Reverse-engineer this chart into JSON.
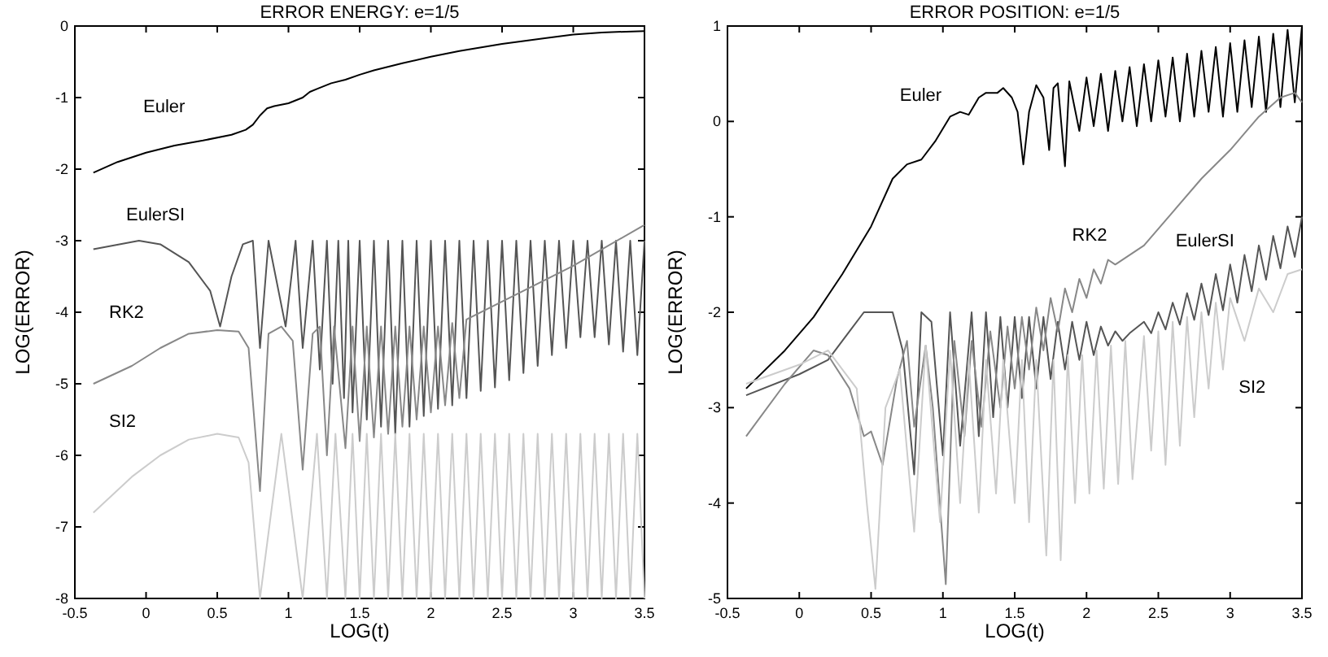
{
  "chart_data": [
    {
      "type": "line",
      "title": "ERROR ENERGY: e=1/5",
      "xlabel": "LOG(t)",
      "ylabel": "LOG(ERROR)",
      "xlim": [
        -0.5,
        3.5
      ],
      "ylim": [
        -8,
        0
      ],
      "xticks": [
        -0.5,
        0,
        0.5,
        1,
        1.5,
        2,
        2.5,
        3,
        3.5
      ],
      "yticks": [
        -8,
        -7,
        -6,
        -5,
        -4,
        -3,
        -2,
        -1,
        0
      ],
      "grid": false,
      "legend": false,
      "marker": "none",
      "line_style": "solid",
      "series": [
        {
          "name": "Euler",
          "color": "#000000",
          "x": [
            -0.37,
            -0.2,
            0,
            0.2,
            0.4,
            0.6,
            0.7,
            0.75,
            0.8,
            0.85,
            0.9,
            1.0,
            1.1,
            1.15,
            1.2,
            1.3,
            1.4,
            1.5,
            1.6,
            1.8,
            2.0,
            2.2,
            2.5,
            2.8,
            3.0,
            3.2,
            3.5
          ],
          "values": [
            -2.05,
            -1.9,
            -1.77,
            -1.67,
            -1.6,
            -1.52,
            -1.45,
            -1.38,
            -1.25,
            -1.15,
            -1.12,
            -1.08,
            -1.0,
            -0.92,
            -0.88,
            -0.8,
            -0.75,
            -0.68,
            -0.62,
            -0.52,
            -0.43,
            -0.35,
            -0.25,
            -0.17,
            -0.12,
            -0.09,
            -0.07
          ]
        },
        {
          "name": "EulerSI",
          "color": "#555555",
          "x": [
            -0.37,
            -0.05,
            0.1,
            0.3,
            0.45,
            0.52,
            0.6,
            0.68,
            0.75,
            0.8,
            0.86,
            0.98,
            1.05,
            1.1,
            1.17,
            1.22,
            1.27,
            1.31,
            1.35,
            1.39,
            1.42,
            1.45,
            1.5,
            1.55,
            1.6,
            1.65,
            1.7,
            1.75,
            1.8,
            1.85,
            1.9,
            1.95,
            2.0,
            2.05,
            2.1,
            2.15,
            2.2,
            2.25,
            2.3,
            2.35,
            2.4,
            2.45,
            2.5,
            2.55,
            2.6,
            2.65,
            2.7,
            2.75,
            2.8,
            2.85,
            2.9,
            2.95,
            3.0,
            3.05,
            3.1,
            3.15,
            3.2,
            3.25,
            3.3,
            3.35,
            3.4,
            3.45,
            3.5
          ],
          "values": [
            -3.12,
            -3.0,
            -3.05,
            -3.3,
            -3.7,
            -4.2,
            -3.5,
            -3.05,
            -3.0,
            -4.5,
            -3.0,
            -4.2,
            -3.0,
            -4.5,
            -3.0,
            -4.8,
            -3.0,
            -5.0,
            -3.0,
            -5.2,
            -3.0,
            -5.4,
            -3.0,
            -5.5,
            -3.0,
            -5.6,
            -3.0,
            -5.7,
            -3.0,
            -5.6,
            -3.0,
            -5.45,
            -3.0,
            -5.35,
            -3.0,
            -5.3,
            -3.0,
            -5.2,
            -3.0,
            -5.1,
            -3.0,
            -5.05,
            -3.0,
            -4.95,
            -3.0,
            -4.85,
            -3.0,
            -4.75,
            -3.0,
            -4.6,
            -3.0,
            -4.5,
            -3.0,
            -4.35,
            -3.0,
            -4.35,
            -3.0,
            -4.45,
            -3.0,
            -4.55,
            -3.0,
            -4.6,
            -3.0
          ]
        },
        {
          "name": "RK2",
          "color": "#888888",
          "x": [
            -0.37,
            -0.1,
            0.1,
            0.3,
            0.5,
            0.65,
            0.72,
            0.8,
            0.86,
            0.95,
            1.03,
            1.1,
            1.17,
            1.22,
            1.27,
            1.32,
            1.4,
            1.45,
            1.5,
            1.55,
            1.6,
            1.65,
            1.7,
            1.75,
            1.8,
            1.85,
            1.9,
            1.95,
            2.0,
            2.05,
            2.1,
            2.15,
            2.2,
            2.25,
            2.5,
            3.0,
            3.5
          ],
          "values": [
            -5.0,
            -4.75,
            -4.5,
            -4.3,
            -4.25,
            -4.27,
            -4.5,
            -6.5,
            -4.3,
            -4.2,
            -4.4,
            -6.2,
            -4.3,
            -4.2,
            -6.0,
            -4.2,
            -5.9,
            -4.2,
            -5.8,
            -4.2,
            -5.75,
            -4.2,
            -5.7,
            -4.2,
            -5.6,
            -4.2,
            -5.5,
            -4.2,
            -5.4,
            -4.2,
            -5.3,
            -4.15,
            -5.2,
            -4.1,
            -3.85,
            -3.35,
            -2.78
          ]
        },
        {
          "name": "SI2",
          "color": "#cccccc",
          "x": [
            -0.37,
            -0.1,
            0.1,
            0.3,
            0.5,
            0.65,
            0.72,
            0.8,
            0.95,
            1.1,
            1.2,
            1.27,
            1.33,
            1.4,
            1.45,
            1.5,
            1.55,
            1.6,
            1.65,
            1.7,
            1.75,
            1.8,
            1.85,
            1.9,
            1.95,
            2.0,
            2.05,
            2.1,
            2.15,
            2.2,
            2.25,
            2.3,
            2.35,
            2.4,
            2.45,
            2.5,
            2.55,
            2.6,
            2.65,
            2.7,
            2.75,
            2.8,
            2.85,
            2.9,
            2.95,
            3.0,
            3.05,
            3.1,
            3.15,
            3.2,
            3.25,
            3.3,
            3.35,
            3.4,
            3.45,
            3.5
          ],
          "values": [
            -6.8,
            -6.3,
            -6.0,
            -5.78,
            -5.7,
            -5.75,
            -6.1,
            -8,
            -5.7,
            -8,
            -5.7,
            -8,
            -5.7,
            -8,
            -5.7,
            -8,
            -5.7,
            -8,
            -5.7,
            -8,
            -5.7,
            -8,
            -5.7,
            -8,
            -5.7,
            -8,
            -5.7,
            -8,
            -5.7,
            -8,
            -5.7,
            -8,
            -5.7,
            -8,
            -5.7,
            -8,
            -5.7,
            -8,
            -5.7,
            -8,
            -5.7,
            -8,
            -5.7,
            -8,
            -5.7,
            -8,
            -5.7,
            -8,
            -5.7,
            -8,
            -5.7,
            -8,
            -5.7,
            -8,
            -5.7,
            -8
          ]
        }
      ]
    },
    {
      "type": "line",
      "title": "ERROR POSITION: e=1/5",
      "xlabel": "LOG(t)",
      "ylabel": "LOG(ERROR)",
      "xlim": [
        -0.5,
        3.5
      ],
      "ylim": [
        -5,
        1
      ],
      "xticks": [
        -0.5,
        0,
        0.5,
        1,
        1.5,
        2,
        2.5,
        3,
        3.5
      ],
      "yticks": [
        -5,
        -4,
        -3,
        -2,
        -1,
        0,
        1
      ],
      "grid": false,
      "legend": false,
      "marker": "none",
      "line_style": "solid",
      "series": [
        {
          "name": "Euler",
          "color": "#000000",
          "x": [
            -0.37,
            -0.1,
            0.1,
            0.3,
            0.5,
            0.65,
            0.75,
            0.85,
            0.95,
            1.05,
            1.12,
            1.18,
            1.25,
            1.3,
            1.38,
            1.42,
            1.48,
            1.52,
            1.56,
            1.6,
            1.65,
            1.7,
            1.74,
            1.77,
            1.8,
            1.85,
            1.88,
            1.95,
            2.0,
            2.05,
            2.1,
            2.15,
            2.2,
            2.25,
            2.3,
            2.35,
            2.4,
            2.45,
            2.5,
            2.55,
            2.6,
            2.65,
            2.7,
            2.75,
            2.8,
            2.85,
            2.9,
            2.95,
            3.0,
            3.05,
            3.1,
            3.15,
            3.2,
            3.25,
            3.3,
            3.35,
            3.4,
            3.45,
            3.5
          ],
          "values": [
            -2.8,
            -2.4,
            -2.05,
            -1.6,
            -1.1,
            -0.6,
            -0.45,
            -0.4,
            -0.2,
            0.05,
            0.1,
            0.07,
            0.25,
            0.3,
            0.3,
            0.35,
            0.25,
            0.1,
            -0.45,
            0.1,
            0.38,
            0.25,
            -0.3,
            0.35,
            0.4,
            -0.47,
            0.42,
            -0.1,
            0.46,
            -0.05,
            0.5,
            -0.1,
            0.53,
            0.0,
            0.57,
            -0.05,
            0.6,
            0.0,
            0.64,
            0.05,
            0.67,
            0.0,
            0.71,
            0.05,
            0.74,
            0.1,
            0.78,
            0.05,
            0.82,
            0.1,
            0.85,
            0.15,
            0.89,
            0.1,
            0.92,
            0.15,
            0.96,
            0.2,
            1.0
          ]
        },
        {
          "name": "EulerSI",
          "color": "#555555",
          "x": [
            -0.37,
            0.0,
            0.2,
            0.35,
            0.45,
            0.65,
            0.72,
            0.8,
            0.85,
            0.92,
            1.0,
            1.05,
            1.12,
            1.2,
            1.25,
            1.3,
            1.35,
            1.4,
            1.45,
            1.5,
            1.55,
            1.6,
            1.65,
            1.7,
            1.75,
            1.8,
            1.85,
            1.9,
            1.95,
            2.0,
            2.05,
            2.1,
            2.15,
            2.2,
            2.25,
            2.3,
            2.4,
            2.45,
            2.5,
            2.55,
            2.6,
            2.65,
            2.7,
            2.75,
            2.8,
            2.85,
            2.9,
            2.95,
            3.0,
            3.05,
            3.1,
            3.15,
            3.2,
            3.25,
            3.3,
            3.35,
            3.4,
            3.45,
            3.5
          ],
          "values": [
            -2.87,
            -2.65,
            -2.5,
            -2.2,
            -2.0,
            -2.0,
            -2.4,
            -3.7,
            -2.0,
            -2.1,
            -3.5,
            -2.0,
            -3.4,
            -2.0,
            -3.3,
            -2.0,
            -3.1,
            -2.05,
            -3.0,
            -2.05,
            -2.9,
            -2.05,
            -2.8,
            -2.05,
            -2.7,
            -2.1,
            -2.6,
            -2.1,
            -2.5,
            -2.1,
            -2.45,
            -2.15,
            -2.35,
            -2.2,
            -2.3,
            -2.22,
            -2.1,
            -2.22,
            -2.0,
            -2.18,
            -1.9,
            -2.13,
            -1.8,
            -2.08,
            -1.7,
            -2.03,
            -1.6,
            -1.98,
            -1.5,
            -1.9,
            -1.4,
            -1.78,
            -1.3,
            -1.66,
            -1.2,
            -1.54,
            -1.1,
            -1.42,
            -1.0
          ]
        },
        {
          "name": "RK2",
          "color": "#888888",
          "x": [
            -0.37,
            -0.1,
            0.1,
            0.2,
            0.35,
            0.45,
            0.5,
            0.58,
            0.68,
            0.75,
            0.8,
            0.88,
            0.93,
            1.02,
            1.08,
            1.15,
            1.2,
            1.27,
            1.33,
            1.4,
            1.45,
            1.5,
            1.55,
            1.6,
            1.65,
            1.7,
            1.75,
            1.8,
            1.85,
            1.9,
            1.95,
            2.0,
            2.05,
            2.1,
            2.15,
            2.2,
            2.4,
            2.6,
            2.8,
            3.0,
            3.2,
            3.35,
            3.45,
            3.5
          ],
          "values": [
            -3.3,
            -2.75,
            -2.4,
            -2.45,
            -2.8,
            -3.3,
            -3.25,
            -3.6,
            -2.7,
            -2.3,
            -3.2,
            -2.35,
            -3.0,
            -4.85,
            -2.3,
            -3.3,
            -2.3,
            -3.2,
            -2.2,
            -3.0,
            -2.15,
            -2.8,
            -2.05,
            -2.6,
            -1.95,
            -2.4,
            -1.85,
            -2.2,
            -1.75,
            -2.0,
            -1.65,
            -1.85,
            -1.55,
            -1.7,
            -1.45,
            -1.5,
            -1.3,
            -0.95,
            -0.6,
            -0.3,
            0.05,
            0.25,
            0.3,
            0.2
          ]
        },
        {
          "name": "SI2",
          "color": "#cccccc",
          "x": [
            -0.37,
            0.0,
            0.2,
            0.4,
            0.47,
            0.53,
            0.6,
            0.7,
            0.8,
            0.88,
            0.98,
            1.05,
            1.12,
            1.18,
            1.25,
            1.3,
            1.37,
            1.42,
            1.5,
            1.55,
            1.6,
            1.65,
            1.72,
            1.77,
            1.82,
            1.87,
            1.92,
            1.97,
            2.02,
            2.07,
            2.12,
            2.17,
            2.22,
            2.27,
            2.32,
            2.4,
            2.45,
            2.5,
            2.55,
            2.6,
            2.65,
            2.7,
            2.75,
            2.8,
            2.85,
            2.9,
            2.95,
            3.0,
            3.1,
            3.2,
            3.3,
            3.4,
            3.5
          ],
          "values": [
            -2.75,
            -2.55,
            -2.4,
            -2.8,
            -4.0,
            -4.9,
            -3.0,
            -2.6,
            -4.3,
            -2.35,
            -4.2,
            -2.4,
            -4.0,
            -2.5,
            -4.1,
            -2.5,
            -3.9,
            -2.5,
            -4.0,
            -2.5,
            -4.2,
            -2.5,
            -4.55,
            -2.5,
            -4.6,
            -2.45,
            -4.0,
            -2.45,
            -3.9,
            -2.4,
            -3.85,
            -2.35,
            -3.8,
            -2.3,
            -3.75,
            -2.25,
            -3.45,
            -2.2,
            -3.6,
            -2.1,
            -3.4,
            -2.05,
            -3.1,
            -2.0,
            -2.8,
            -1.9,
            -2.6,
            -1.85,
            -2.3,
            -1.75,
            -2.0,
            -1.6,
            -1.55
          ]
        }
      ]
    }
  ]
}
